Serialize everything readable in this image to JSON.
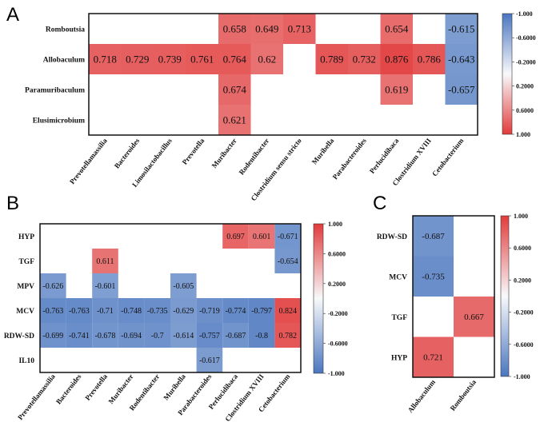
{
  "colors": {
    "neg": "#4a76bf",
    "mid": "#f8f9fb",
    "pos": "#e23b3b",
    "border": "#111111"
  },
  "chart_data": [
    {
      "panel": "A",
      "type": "heatmap",
      "rows": [
        "Romboutsia",
        "Allobaculum",
        "Paramuribaculum",
        "Elusimicrobium"
      ],
      "columns": [
        "Prevotellamassilia",
        "Bacteroides",
        "Limosilactobacillus",
        "Prevotella",
        "Muribacter",
        "Rodentibacter",
        "Clostridium sensu stricto",
        "Muribella",
        "Parabacteroides",
        "Perlucidibaca",
        "Clostridium XVIII",
        "Cetobacterium"
      ],
      "values": [
        [
          null,
          null,
          null,
          null,
          0.658,
          0.649,
          0.713,
          null,
          null,
          0.654,
          null,
          -0.615
        ],
        [
          0.718,
          0.729,
          0.739,
          0.761,
          0.764,
          0.62,
          null,
          0.789,
          0.732,
          0.876,
          0.786,
          -0.643
        ],
        [
          null,
          null,
          null,
          null,
          0.674,
          null,
          null,
          null,
          null,
          0.619,
          null,
          -0.657
        ],
        [
          null,
          null,
          null,
          null,
          0.621,
          null,
          null,
          null,
          null,
          null,
          null,
          null
        ]
      ],
      "labels": [
        [
          null,
          null,
          null,
          null,
          "0.658",
          "0.649",
          "0.713",
          null,
          null,
          "0.654",
          null,
          "-0.615"
        ],
        [
          "0.718",
          "0.729",
          "0.739",
          "0.761",
          "0.764",
          "0.62",
          null,
          "0.789",
          "0.732",
          "0.876",
          "0.786",
          "-0.643"
        ],
        [
          null,
          null,
          null,
          null,
          "0.674",
          null,
          null,
          null,
          null,
          "0.619",
          null,
          "-0.657"
        ],
        [
          null,
          null,
          null,
          null,
          "0.621",
          null,
          null,
          null,
          null,
          null,
          null,
          null
        ]
      ],
      "colorbar": {
        "ticks": [
          "-1.000",
          "-0.6000",
          "-0.2000",
          "0.2000",
          "0.6000",
          "1.000"
        ],
        "top_is_negative": true
      }
    },
    {
      "panel": "B",
      "type": "heatmap",
      "rows": [
        "HYP",
        "TGF",
        "MPV",
        "MCV",
        "RDW-SD",
        "IL10"
      ],
      "columns": [
        "Prevotellamassilia",
        "Bacteroides",
        "Prevotella",
        "Muribacter",
        "Rodentibacter",
        "Muribella",
        "Parabacteroides",
        "Perlucidibaca",
        "Clostridium XVIII",
        "Cetobacterium"
      ],
      "values": [
        [
          null,
          null,
          null,
          null,
          null,
          null,
          null,
          0.697,
          0.601,
          -0.671
        ],
        [
          null,
          null,
          0.611,
          null,
          null,
          null,
          null,
          null,
          null,
          -0.654
        ],
        [
          -0.626,
          null,
          -0.601,
          null,
          null,
          -0.605,
          null,
          null,
          null,
          null
        ],
        [
          -0.763,
          -0.763,
          -0.71,
          -0.748,
          -0.735,
          -0.629,
          -0.719,
          -0.774,
          -0.797,
          0.824
        ],
        [
          -0.699,
          -0.741,
          -0.678,
          -0.694,
          -0.7,
          -0.614,
          -0.757,
          -0.687,
          -0.8,
          0.782
        ],
        [
          null,
          null,
          null,
          null,
          null,
          null,
          -0.617,
          null,
          null,
          null
        ]
      ],
      "labels": [
        [
          null,
          null,
          null,
          null,
          null,
          null,
          null,
          "0.697",
          "0.601",
          "-0.671"
        ],
        [
          null,
          null,
          "0.611",
          null,
          null,
          null,
          null,
          null,
          null,
          "-0.654"
        ],
        [
          "-0.626",
          null,
          "-0.601",
          null,
          null,
          "-0.605",
          null,
          null,
          null,
          null
        ],
        [
          "-0.763",
          "-0.763",
          "-0.71",
          "-0.748",
          "-0.735",
          "-0.629",
          "-0.719",
          "-0.774",
          "-0.797",
          "0.824"
        ],
        [
          "-0.699",
          "-0.741",
          "-0.678",
          "-0.694",
          "-0.7",
          "-0.614",
          "-0.757",
          "-0.687",
          "-0.8",
          "0.782"
        ],
        [
          null,
          null,
          null,
          null,
          null,
          null,
          "-0.617",
          null,
          null,
          null
        ]
      ],
      "colorbar": {
        "ticks": [
          "1.000",
          "0.6000",
          "0.2000",
          "-0.2000",
          "-0.6000",
          "-1.000"
        ],
        "top_is_negative": false
      }
    },
    {
      "panel": "C",
      "type": "heatmap",
      "rows": [
        "RDW-SD",
        "MCV",
        "TGF",
        "HYP"
      ],
      "columns": [
        "Allobaculum",
        "Romboutsia"
      ],
      "values": [
        [
          -0.687,
          null
        ],
        [
          -0.735,
          null
        ],
        [
          null,
          0.667
        ],
        [
          0.721,
          null
        ]
      ],
      "labels": [
        [
          "-0.687",
          null
        ],
        [
          "-0.735",
          null
        ],
        [
          null,
          "0.667"
        ],
        [
          "0.721",
          null
        ]
      ],
      "colorbar": {
        "ticks": [
          "1.000",
          "0.6000",
          "0.2000",
          "-0.2000",
          "-0.6000",
          "-1.000"
        ],
        "top_is_negative": false
      }
    }
  ]
}
